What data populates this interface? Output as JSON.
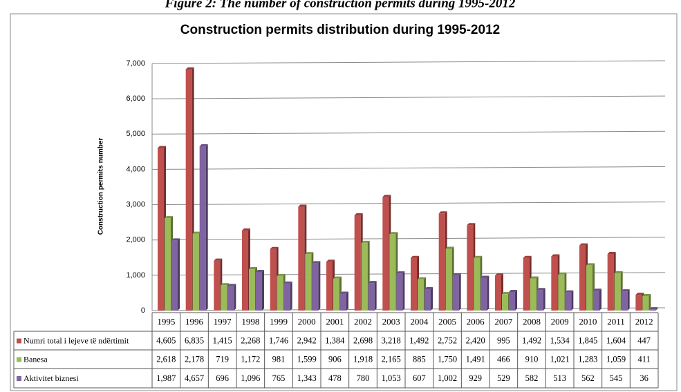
{
  "chart_data": {
    "type": "bar",
    "caption": "Figure 2: The number of construction permits during 1995-2012",
    "title": "Construction permits distribution during 1995-2012",
    "y_label": "Construction permits number",
    "categories": [
      "1995",
      "1996",
      "1997",
      "1998",
      "1999",
      "2000",
      "2001",
      "2002",
      "2003",
      "2004",
      "2005",
      "2006",
      "2007",
      "2008",
      "2009",
      "2010",
      "2011",
      "2012"
    ],
    "series": [
      {
        "name": "Numri total i lejeve të ndërtimit",
        "color": "#c0504d",
        "values": [
          4605,
          6835,
          1415,
          2268,
          1746,
          2942,
          1384,
          2698,
          3218,
          1492,
          2752,
          2420,
          995,
          1492,
          1534,
          1845,
          1604,
          447
        ],
        "value_labels": [
          "4,605",
          "6,835",
          "1,415",
          "2,268",
          "1,746",
          "2,942",
          "1,384",
          "2,698",
          "3,218",
          "1,492",
          "2,752",
          "2,420",
          "995",
          "1,492",
          "1,534",
          "1,845",
          "1,604",
          "447"
        ]
      },
      {
        "name": "Banesa",
        "color": "#9bbb59",
        "values": [
          2618,
          2178,
          719,
          1172,
          981,
          1599,
          906,
          1918,
          2165,
          885,
          1750,
          1491,
          466,
          910,
          1021,
          1283,
          1059,
          411
        ],
        "value_labels": [
          "2,618",
          "2,178",
          "719",
          "1,172",
          "981",
          "1,599",
          "906",
          "1,918",
          "2,165",
          "885",
          "1,750",
          "1,491",
          "466",
          "910",
          "1,021",
          "1,283",
          "1,059",
          "411"
        ]
      },
      {
        "name": "Aktivitet biznesi",
        "color": "#8064a2",
        "values": [
          1987,
          4657,
          696,
          1096,
          765,
          1343,
          478,
          780,
          1053,
          607,
          1002,
          929,
          529,
          582,
          513,
          562,
          545,
          36
        ],
        "value_labels": [
          "1,987",
          "4,657",
          "696",
          "1,096",
          "765",
          "1,343",
          "478",
          "780",
          "1,053",
          "607",
          "1,002",
          "929",
          "529",
          "582",
          "513",
          "562",
          "545",
          "36"
        ]
      }
    ],
    "ylim": [
      0,
      7000
    ],
    "yticks": [
      0,
      {
        "value": 1000,
        "label": "1,000"
      },
      {
        "value": 2000,
        "label": "2,000"
      },
      {
        "value": 3000,
        "label": "3,000"
      },
      {
        "value": 4000,
        "label": "4,000"
      },
      {
        "value": 5000,
        "label": "5,000"
      },
      {
        "value": 6000,
        "label": "6,000"
      },
      {
        "value": 7000,
        "label": "7,000"
      }
    ],
    "grid": true
  }
}
